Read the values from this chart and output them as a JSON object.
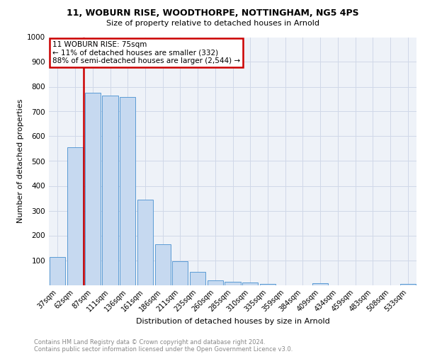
{
  "title1": "11, WOBURN RISE, WOODTHORPE, NOTTINGHAM, NG5 4PS",
  "title2": "Size of property relative to detached houses in Arnold",
  "xlabel": "Distribution of detached houses by size in Arnold",
  "ylabel": "Number of detached properties",
  "categories": [
    "37sqm",
    "62sqm",
    "87sqm",
    "111sqm",
    "136sqm",
    "161sqm",
    "186sqm",
    "211sqm",
    "235sqm",
    "260sqm",
    "285sqm",
    "310sqm",
    "335sqm",
    "359sqm",
    "384sqm",
    "409sqm",
    "434sqm",
    "459sqm",
    "483sqm",
    "508sqm",
    "533sqm"
  ],
  "values": [
    113,
    556,
    775,
    763,
    760,
    345,
    163,
    96,
    52,
    18,
    13,
    10,
    5,
    0,
    0,
    8,
    0,
    0,
    0,
    0,
    5
  ],
  "bar_color": "#c6d9f0",
  "bar_edge_color": "#5b9bd5",
  "vline_color": "#cc0000",
  "annotation_title": "11 WOBURN RISE: 75sqm",
  "annotation_line1": "← 11% of detached houses are smaller (332)",
  "annotation_line2": "88% of semi-detached houses are larger (2,544) →",
  "annotation_box_color": "#cc0000",
  "ylim": [
    0,
    1000
  ],
  "yticks": [
    0,
    100,
    200,
    300,
    400,
    500,
    600,
    700,
    800,
    900,
    1000
  ],
  "grid_color": "#d0d8e8",
  "bg_color": "#eef2f8",
  "footnote1": "Contains HM Land Registry data © Crown copyright and database right 2024.",
  "footnote2": "Contains public sector information licensed under the Open Government Licence v3.0."
}
